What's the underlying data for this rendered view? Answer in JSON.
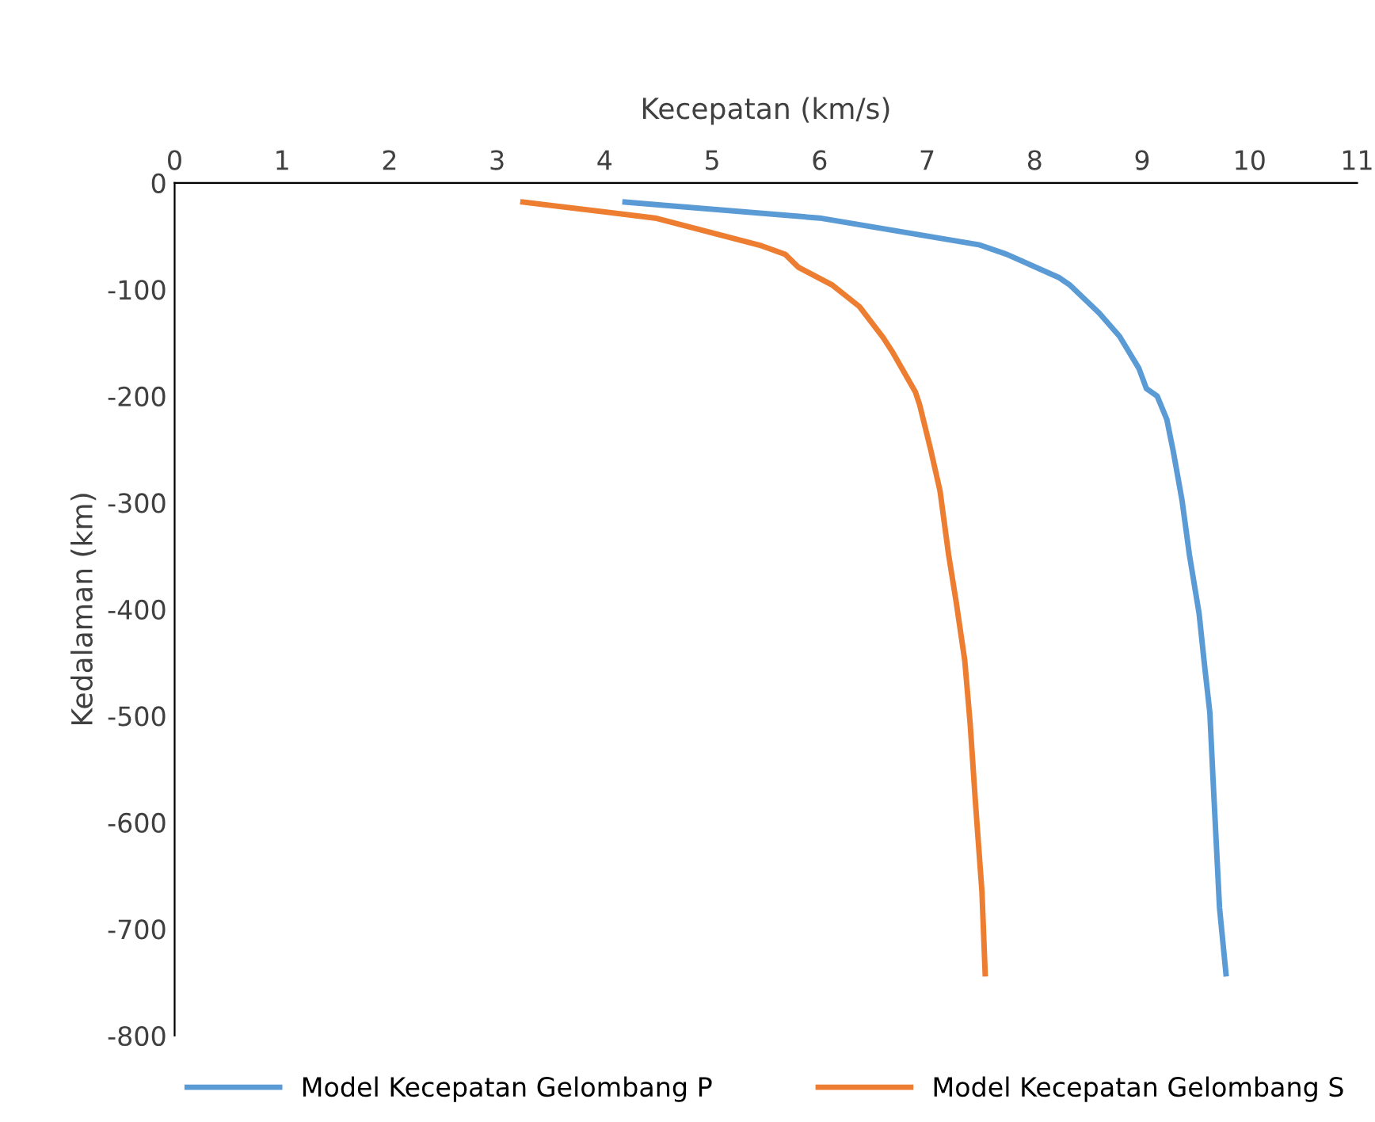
{
  "chart_data": {
    "type": "line",
    "xlabel": "Kecepatan (km/s)",
    "ylabel": "Kedalaman (km)",
    "xlim": [
      0,
      11
    ],
    "xticks": [
      0,
      1,
      2,
      3,
      4,
      5,
      6,
      7,
      8,
      9,
      10,
      11
    ],
    "ylim": [
      -800,
      0
    ],
    "yticks": [
      -800,
      -700,
      -600,
      -500,
      -400,
      -300,
      -200,
      -100,
      0
    ],
    "legend": "bottom",
    "marker": "none",
    "line_style": "solid",
    "series": [
      {
        "name": "Model Kecepatan Gelombang P",
        "color": "#5b9bd5",
        "x": [
          4.19,
          6.0,
          7.48,
          7.74,
          8.23,
          8.33,
          8.6,
          8.79,
          8.97,
          9.04,
          9.14,
          9.23,
          9.29,
          9.37,
          9.44,
          9.53,
          9.58,
          9.63,
          9.66,
          9.69,
          9.72,
          9.78
        ],
        "values": [
          -18,
          -33,
          -58,
          -67,
          -89,
          -96,
          -122,
          -144,
          -174,
          -193,
          -200,
          -222,
          -252,
          -297,
          -349,
          -404,
          -452,
          -497,
          -560,
          -620,
          -680,
          -742
        ]
      },
      {
        "name": "Model Kecepatan Gelombang S",
        "color": "#ed7d31",
        "x": [
          3.24,
          4.47,
          5.46,
          5.68,
          5.8,
          6.12,
          6.37,
          6.59,
          6.68,
          6.89,
          6.93,
          7.03,
          7.12,
          7.2,
          7.27,
          7.35,
          7.4,
          7.45,
          7.51,
          7.54
        ],
        "values": [
          -18,
          -33,
          -59,
          -67,
          -79,
          -96,
          -116,
          -145,
          -159,
          -196,
          -208,
          -249,
          -289,
          -349,
          -393,
          -448,
          -507,
          -582,
          -665,
          -742
        ]
      }
    ]
  }
}
